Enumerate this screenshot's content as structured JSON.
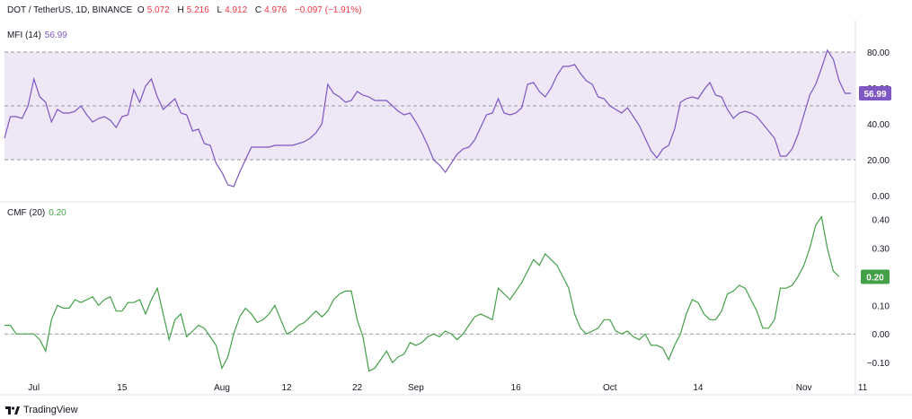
{
  "header": {
    "symbol": "DOT / TetherUS, 1D, BINANCE",
    "open_label": "O",
    "open": "5.072",
    "high_label": "H",
    "high": "5.216",
    "low_label": "L",
    "low": "4.912",
    "close_label": "C",
    "close": "4.976",
    "change": "−0.097 (−1.91%)"
  },
  "colors": {
    "mfi_line": "#7e57c2",
    "mfi_band": "#ede7f6",
    "cmf_line": "#43a047",
    "negative": "#f23645"
  },
  "footer": {
    "brand": "TradingView",
    "logo_icon": "tradingview-logo-icon"
  },
  "chart_data": [
    {
      "type": "line",
      "title": "MFI (14)",
      "last_value": "56.99",
      "ylim": [
        0,
        90
      ],
      "y_ticks": [
        "80.00",
        "60.00",
        "40.00",
        "20.00",
        "0.00"
      ],
      "y_tick_values": [
        80,
        60,
        40,
        20,
        0
      ],
      "bands": [
        20,
        50,
        80
      ],
      "x_tick_labels": [
        "Jul",
        "15",
        "Aug",
        "12",
        "22",
        "Sep",
        "16",
        "Oct",
        "14",
        "Nov",
        "11"
      ],
      "x_tick_index": [
        5,
        20,
        37,
        48,
        60,
        70,
        87,
        103,
        118,
        136,
        146
      ],
      "series": [
        {
          "values": [
            32,
            44,
            44,
            43,
            50,
            65,
            55,
            52,
            41,
            48,
            46,
            46,
            47,
            50,
            45,
            41,
            43,
            44,
            42,
            38,
            44,
            45,
            59,
            52,
            61,
            65,
            55,
            48,
            51,
            54,
            46,
            45,
            36,
            37,
            29,
            28,
            18,
            13,
            6,
            5,
            13,
            20,
            27,
            27,
            27,
            27,
            28,
            28,
            28,
            28,
            29,
            30,
            32,
            35,
            40,
            62,
            57,
            55,
            52,
            53,
            58,
            56,
            55,
            53,
            53,
            53,
            50,
            47,
            45,
            46,
            41,
            35,
            28,
            20,
            17,
            13,
            18,
            23,
            26,
            27,
            31,
            38,
            45,
            46,
            54,
            46,
            45,
            46,
            49,
            62,
            63,
            58,
            55,
            60,
            67,
            72,
            72,
            73,
            68,
            64,
            62,
            55,
            54,
            50,
            48,
            46,
            49,
            44,
            39,
            32,
            25,
            21,
            26,
            28,
            37,
            52,
            54,
            55,
            54,
            59,
            63,
            56,
            55,
            48,
            43,
            46,
            47,
            46,
            44,
            40,
            36,
            32,
            22,
            22,
            26,
            34,
            45,
            56,
            62,
            71,
            81,
            76,
            64,
            57,
            57
          ]
        }
      ]
    },
    {
      "type": "line",
      "title": "CMF (20)",
      "last_value": "0.20",
      "ylim": [
        -0.15,
        0.44
      ],
      "y_ticks": [
        "0.40",
        "0.30",
        "0.20",
        "0.10",
        "0.00",
        "−0.10"
      ],
      "y_tick_values": [
        0.4,
        0.3,
        0.2,
        0.1,
        0.0,
        -0.1
      ],
      "zero_line": 0,
      "x_tick_labels": [
        "Jul",
        "15",
        "Aug",
        "12",
        "22",
        "Sep",
        "16",
        "Oct",
        "14",
        "Nov",
        "11"
      ],
      "x_tick_index": [
        5,
        20,
        37,
        48,
        60,
        70,
        87,
        103,
        118,
        136,
        146
      ],
      "series": [
        {
          "values": [
            0.03,
            0.03,
            0.0,
            0.0,
            0.0,
            0.0,
            -0.02,
            -0.06,
            0.05,
            0.1,
            0.09,
            0.09,
            0.12,
            0.11,
            0.12,
            0.13,
            0.1,
            0.12,
            0.13,
            0.08,
            0.08,
            0.11,
            0.11,
            0.12,
            0.07,
            0.12,
            0.16,
            0.07,
            -0.02,
            0.05,
            0.07,
            -0.01,
            0.01,
            0.03,
            0.02,
            -0.01,
            -0.04,
            -0.12,
            -0.08,
            0.0,
            0.06,
            0.09,
            0.07,
            0.04,
            0.05,
            0.07,
            0.1,
            0.05,
            0.0,
            0.01,
            0.03,
            0.04,
            0.06,
            0.08,
            0.06,
            0.08,
            0.12,
            0.14,
            0.15,
            0.15,
            0.05,
            -0.01,
            -0.13,
            -0.12,
            -0.09,
            -0.06,
            -0.1,
            -0.08,
            -0.07,
            -0.03,
            -0.04,
            -0.03,
            -0.01,
            0.0,
            -0.01,
            0.01,
            0.0,
            -0.02,
            0.0,
            0.03,
            0.06,
            0.07,
            0.06,
            0.05,
            0.16,
            0.14,
            0.12,
            0.15,
            0.18,
            0.22,
            0.26,
            0.24,
            0.28,
            0.26,
            0.24,
            0.2,
            0.16,
            0.07,
            0.02,
            0.0,
            0.01,
            0.02,
            0.05,
            0.05,
            0.01,
            0.0,
            0.01,
            -0.01,
            -0.02,
            0.0,
            -0.04,
            -0.04,
            -0.05,
            -0.09,
            -0.04,
            0.0,
            0.07,
            0.12,
            0.11,
            0.07,
            0.05,
            0.05,
            0.08,
            0.14,
            0.15,
            0.17,
            0.16,
            0.12,
            0.08,
            0.02,
            0.02,
            0.05,
            0.16,
            0.16,
            0.17,
            0.2,
            0.24,
            0.3,
            0.38,
            0.41,
            0.3,
            0.22,
            0.2
          ]
        }
      ]
    }
  ]
}
